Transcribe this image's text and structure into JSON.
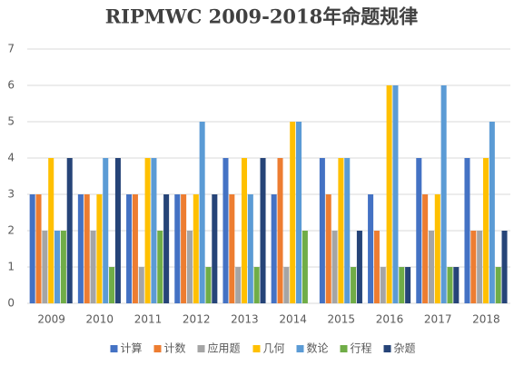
{
  "chart_data": {
    "type": "bar",
    "title": "RIPMWC 2009-2018年命题规律",
    "categories": [
      "2009",
      "2010",
      "2011",
      "2012",
      "2013",
      "2014",
      "2015",
      "2016",
      "2017",
      "2018"
    ],
    "series": [
      {
        "name": "计算",
        "color": "#4472c4",
        "values": [
          3,
          3,
          3,
          3,
          4,
          3,
          4,
          3,
          4,
          4
        ]
      },
      {
        "name": "计数",
        "color": "#ed7d31",
        "values": [
          3,
          3,
          3,
          3,
          3,
          4,
          3,
          2,
          3,
          2
        ]
      },
      {
        "name": "应用题",
        "color": "#a5a5a5",
        "values": [
          2,
          2,
          1,
          2,
          1,
          1,
          2,
          1,
          2,
          2
        ]
      },
      {
        "name": "几何",
        "color": "#ffc000",
        "values": [
          4,
          3,
          4,
          3,
          4,
          5,
          4,
          6,
          3,
          4
        ]
      },
      {
        "name": "数论",
        "color": "#5b9bd5",
        "values": [
          2,
          4,
          4,
          5,
          3,
          5,
          4,
          6,
          6,
          5
        ]
      },
      {
        "name": "行程",
        "color": "#70ad47",
        "values": [
          2,
          1,
          2,
          1,
          1,
          2,
          1,
          1,
          1,
          1
        ]
      },
      {
        "name": "杂题",
        "color": "#264478",
        "values": [
          4,
          4,
          3,
          3,
          4,
          0,
          2,
          1,
          1,
          2
        ]
      }
    ],
    "ylim": [
      0,
      7
    ],
    "yticks": [
      0,
      1,
      2,
      3,
      4,
      5,
      6,
      7
    ],
    "grid": true,
    "legend": "bottom"
  }
}
